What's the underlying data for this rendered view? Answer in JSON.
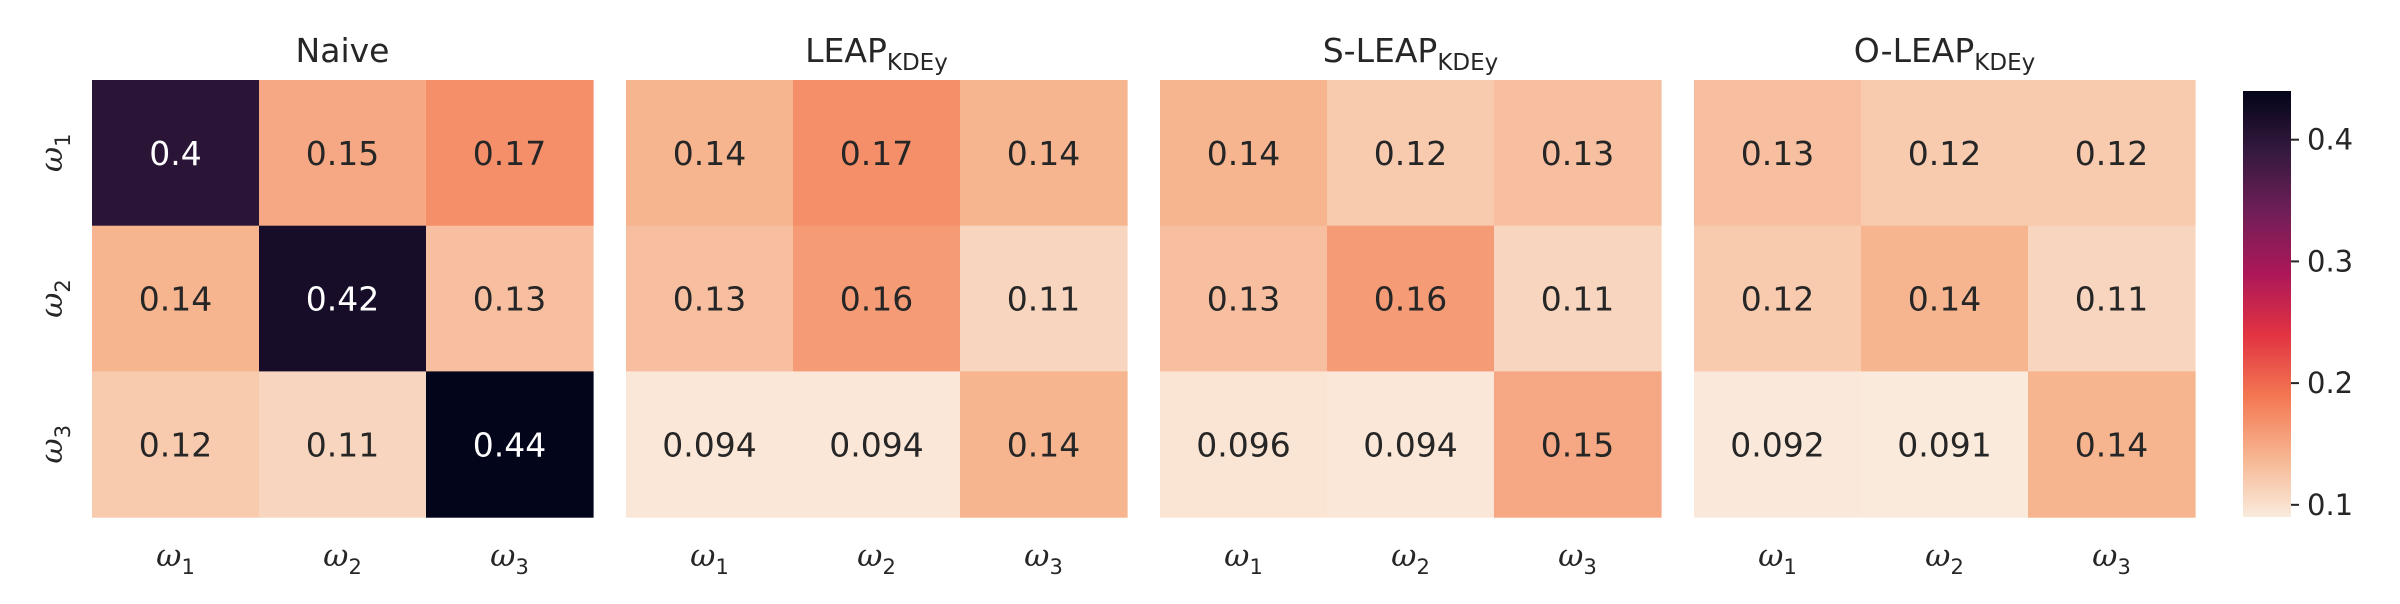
{
  "chart_data": {
    "type": "heatmap",
    "row_labels": [
      {
        "base": "ω",
        "sub": "1"
      },
      {
        "base": "ω",
        "sub": "2"
      },
      {
        "base": "ω",
        "sub": "3"
      }
    ],
    "col_labels": [
      {
        "base": "ω",
        "sub": "1"
      },
      {
        "base": "ω",
        "sub": "2"
      },
      {
        "base": "ω",
        "sub": "3"
      }
    ],
    "panels": [
      {
        "title": {
          "main": "Naive",
          "sub": ""
        },
        "values": [
          [
            0.4,
            0.15,
            0.17
          ],
          [
            0.14,
            0.42,
            0.13
          ],
          [
            0.12,
            0.11,
            0.44
          ]
        ],
        "labels": [
          [
            "0.4",
            "0.15",
            "0.17"
          ],
          [
            "0.14",
            "0.42",
            "0.13"
          ],
          [
            "0.12",
            "0.11",
            "0.44"
          ]
        ]
      },
      {
        "title": {
          "main": "LEAP",
          "sub": "KDEy"
        },
        "values": [
          [
            0.14,
            0.17,
            0.14
          ],
          [
            0.13,
            0.16,
            0.11
          ],
          [
            0.094,
            0.094,
            0.14
          ]
        ],
        "labels": [
          [
            "0.14",
            "0.17",
            "0.14"
          ],
          [
            "0.13",
            "0.16",
            "0.11"
          ],
          [
            "0.094",
            "0.094",
            "0.14"
          ]
        ]
      },
      {
        "title": {
          "main": "S-LEAP",
          "sub": "KDEy"
        },
        "values": [
          [
            0.14,
            0.12,
            0.13
          ],
          [
            0.13,
            0.16,
            0.11
          ],
          [
            0.096,
            0.094,
            0.15
          ]
        ],
        "labels": [
          [
            "0.14",
            "0.12",
            "0.13"
          ],
          [
            "0.13",
            "0.16",
            "0.11"
          ],
          [
            "0.096",
            "0.094",
            "0.15"
          ]
        ]
      },
      {
        "title": {
          "main": "O-LEAP",
          "sub": "KDEy"
        },
        "values": [
          [
            0.13,
            0.12,
            0.12
          ],
          [
            0.12,
            0.14,
            0.11
          ],
          [
            0.092,
            0.091,
            0.14
          ]
        ],
        "labels": [
          [
            "0.13",
            "0.12",
            "0.12"
          ],
          [
            "0.12",
            "0.14",
            "0.11"
          ],
          [
            "0.092",
            "0.091",
            "0.14"
          ]
        ]
      }
    ],
    "colorbar": {
      "vmin": 0.09,
      "vmax": 0.44,
      "ticks": [
        0.1,
        0.2,
        0.3,
        0.4
      ],
      "tick_labels": [
        "0.1",
        "0.2",
        "0.3",
        "0.4"
      ],
      "colormap": "rocket_r",
      "colormap_stops": [
        "#faebdd",
        "#f6b48f",
        "#f37651",
        "#e13342",
        "#ad1759",
        "#701f57",
        "#35193e",
        "#03051a"
      ]
    },
    "grid": false,
    "legend": "colorbar-right"
  }
}
